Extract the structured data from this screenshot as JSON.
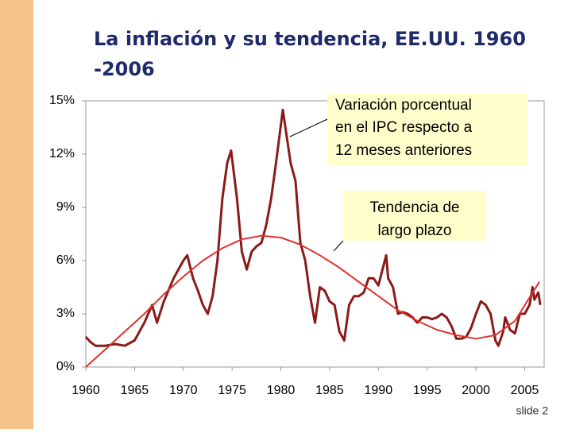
{
  "chart_data": {
    "type": "line",
    "title": [
      "La inflación y su tendencia, EE.UU. 1960",
      "-2006"
    ],
    "xlim": [
      1960,
      2007
    ],
    "ylim": [
      0,
      15
    ],
    "xticks": [
      1960,
      1965,
      1970,
      1975,
      1980,
      1985,
      1990,
      1995,
      2000,
      2005
    ],
    "yticks": [
      {
        "value": 0,
        "label": "0%"
      },
      {
        "value": 3,
        "label": "3%"
      },
      {
        "value": 6,
        "label": "6%"
      },
      {
        "value": 9,
        "label": "9%"
      },
      {
        "value": 12,
        "label": "12%"
      },
      {
        "value": 15,
        "label": "15%"
      }
    ],
    "series": [
      {
        "color": "#8b1a1a",
        "x": [
          1960,
          1960.5,
          1961,
          1962,
          1963,
          1964,
          1965,
          1966,
          1966.8,
          1967.3,
          1968,
          1969,
          1970,
          1970.4,
          1971,
          1971.5,
          1972,
          1972.5,
          1973,
          1973.5,
          1974,
          1974.5,
          1974.9,
          1975.5,
          1976,
          1976.5,
          1977,
          1977.5,
          1978,
          1978.5,
          1979,
          1979.5,
          1980.2,
          1980.6,
          1981,
          1981.5,
          1982,
          1982.5,
          1983,
          1983.5,
          1984,
          1984.5,
          1985,
          1985.5,
          1986,
          1986.5,
          1987,
          1987.5,
          1988,
          1988.5,
          1989,
          1989.5,
          1990,
          1990.8,
          1991,
          1991.5,
          1992,
          1992.5,
          1993,
          1993.5,
          1994,
          1994.5,
          1995,
          1995.5,
          1996,
          1996.5,
          1997,
          1997.5,
          1998,
          1998.5,
          1999,
          1999.5,
          2000,
          2000.5,
          2001,
          2001.5,
          2002,
          2002.3,
          2002.8,
          2003,
          2003.5,
          2004,
          2004.5,
          2005,
          2005.5,
          2005.8,
          2006,
          2006.4,
          2006.6
        ],
        "values": [
          1.7,
          1.4,
          1.2,
          1.2,
          1.3,
          1.2,
          1.5,
          2.5,
          3.5,
          2.5,
          3.7,
          5.0,
          6.0,
          6.3,
          5.0,
          4.3,
          3.5,
          3.0,
          4.0,
          6.0,
          9.5,
          11.5,
          12.2,
          9.5,
          6.5,
          5.5,
          6.5,
          6.8,
          7.0,
          8.0,
          9.5,
          11.5,
          14.5,
          13.0,
          11.5,
          10.5,
          7.0,
          6.0,
          4.0,
          2.5,
          4.5,
          4.3,
          3.7,
          3.5,
          2.0,
          1.5,
          3.5,
          4.0,
          4.0,
          4.2,
          5.0,
          5.0,
          4.6,
          6.3,
          5.0,
          4.5,
          3.0,
          3.1,
          3.0,
          2.8,
          2.5,
          2.8,
          2.8,
          2.7,
          2.8,
          3.0,
          2.8,
          2.3,
          1.6,
          1.6,
          1.7,
          2.2,
          3.0,
          3.7,
          3.5,
          3.0,
          1.5,
          1.2,
          2.0,
          2.8,
          2.1,
          1.9,
          3.0,
          3.0,
          3.5,
          4.5,
          3.8,
          4.2,
          3.5
        ]
      },
      {
        "color": "#e03030",
        "x": [
          1960,
          1962,
          1964,
          1966,
          1968,
          1970,
          1972,
          1974,
          1976,
          1978,
          1980,
          1982,
          1984,
          1986,
          1988,
          1990,
          1992,
          1994,
          1996,
          1998,
          2000,
          2002,
          2004,
          2006.5
        ],
        "values": [
          0,
          1.0,
          2.0,
          3.0,
          4.1,
          5.1,
          6.0,
          6.7,
          7.2,
          7.4,
          7.3,
          6.9,
          6.3,
          5.6,
          4.8,
          4.0,
          3.2,
          2.6,
          2.1,
          1.8,
          1.6,
          1.8,
          2.6,
          4.8
        ]
      }
    ],
    "annotations": [
      {
        "lines": [
          "Variación porcentual",
          "en el IPC respecto a",
          "12 meses anteriores"
        ]
      },
      {
        "lines": [
          "Tendencia de",
          "largo plazo"
        ]
      }
    ],
    "footer": "slide 2"
  }
}
